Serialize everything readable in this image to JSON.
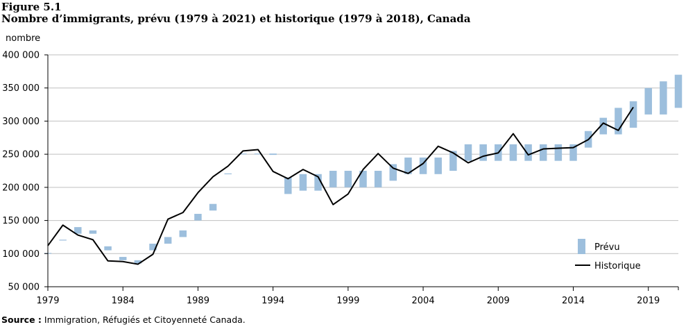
{
  "figure": {
    "label": "Figure 5.1",
    "title": "Nombre d’immigrants,  prévu (1979 à 2021) et historique  (1979 à 2018), Canada",
    "y_unit": "nombre",
    "source_label": "Source :",
    "source_text": " Immigration, Réfugiés et Citoyenneté Canada."
  },
  "chart_data": {
    "type": "bar",
    "ylabel": "nombre",
    "ylim": [
      50000,
      400000
    ],
    "xlim": [
      1979,
      2021
    ],
    "y_ticks": [
      50000,
      100000,
      150000,
      200000,
      250000,
      300000,
      350000,
      400000
    ],
    "y_tick_labels": [
      "50 000",
      "100 000",
      "150 000",
      "200 000",
      "250 000",
      "300 000",
      "350 000",
      "400 000"
    ],
    "x_ticks": [
      1979,
      1984,
      1989,
      1994,
      1999,
      2004,
      2009,
      2014,
      2019
    ],
    "x_tick_labels": [
      "1979",
      "1984",
      "1989",
      "1994",
      "1999",
      "2004",
      "2009",
      "2014",
      "2019"
    ],
    "grid": "horizontal",
    "legend_position": "bottom-right",
    "colors": {
      "prevu": "#9dbfdd",
      "historique": "#000000",
      "grid": "#bfbfbf",
      "axis": "#000000"
    },
    "series": [
      {
        "name": "Prévu",
        "kind": "range-bar",
        "years": [
          1979,
          1980,
          1981,
          1982,
          1983,
          1984,
          1985,
          1986,
          1987,
          1988,
          1989,
          1990,
          1991,
          1992,
          1993,
          1994,
          1995,
          1996,
          1997,
          1998,
          1999,
          2000,
          2001,
          2002,
          2003,
          2004,
          2005,
          2006,
          2007,
          2008,
          2009,
          2010,
          2011,
          2012,
          2013,
          2014,
          2015,
          2016,
          2017,
          2018,
          2019,
          2020,
          2021
        ],
        "low": [
          100000,
          120000,
          130000,
          130000,
          105000,
          90000,
          85000,
          105000,
          115000,
          125000,
          150000,
          165000,
          220000,
          250000,
          250000,
          249000,
          190000,
          195000,
          195000,
          200000,
          200000,
          200000,
          200000,
          210000,
          220000,
          220000,
          220000,
          225000,
          240000,
          240000,
          240000,
          240000,
          240000,
          240000,
          240000,
          240000,
          260000,
          280000,
          280000,
          290000,
          310000,
          310000,
          320000
        ],
        "high": [
          101000,
          121000,
          140000,
          135000,
          111000,
          95000,
          90000,
          115000,
          125000,
          135000,
          160000,
          175000,
          221000,
          251000,
          251000,
          251000,
          215000,
          220000,
          220000,
          225000,
          225000,
          225000,
          225000,
          235000,
          245000,
          245000,
          245000,
          255000,
          265000,
          265000,
          265000,
          265000,
          265000,
          265000,
          265000,
          265000,
          285000,
          305000,
          320000,
          330000,
          350000,
          360000,
          370000
        ]
      },
      {
        "name": "Historique",
        "kind": "line",
        "years": [
          1979,
          1980,
          1981,
          1982,
          1983,
          1984,
          1985,
          1986,
          1987,
          1988,
          1989,
          1990,
          1991,
          1992,
          1993,
          1994,
          1995,
          1996,
          1997,
          1998,
          1999,
          2000,
          2001,
          2002,
          2003,
          2004,
          2005,
          2006,
          2007,
          2008,
          2009,
          2010,
          2011,
          2012,
          2013,
          2014,
          2015,
          2016,
          2017,
          2018
        ],
        "values": [
          112000,
          143000,
          128000,
          121000,
          89000,
          88000,
          84000,
          99000,
          152000,
          162000,
          192000,
          216000,
          232000,
          255000,
          257000,
          224000,
          213000,
          227000,
          216000,
          174000,
          190000,
          227000,
          251000,
          229000,
          221000,
          236000,
          262000,
          252000,
          237000,
          247000,
          252000,
          281000,
          249000,
          258000,
          259000,
          260000,
          272000,
          297000,
          286000,
          321000
        ]
      }
    ],
    "legend": [
      {
        "label": "Prévu",
        "symbol": "bar"
      },
      {
        "label": "Historique",
        "symbol": "line"
      }
    ]
  }
}
